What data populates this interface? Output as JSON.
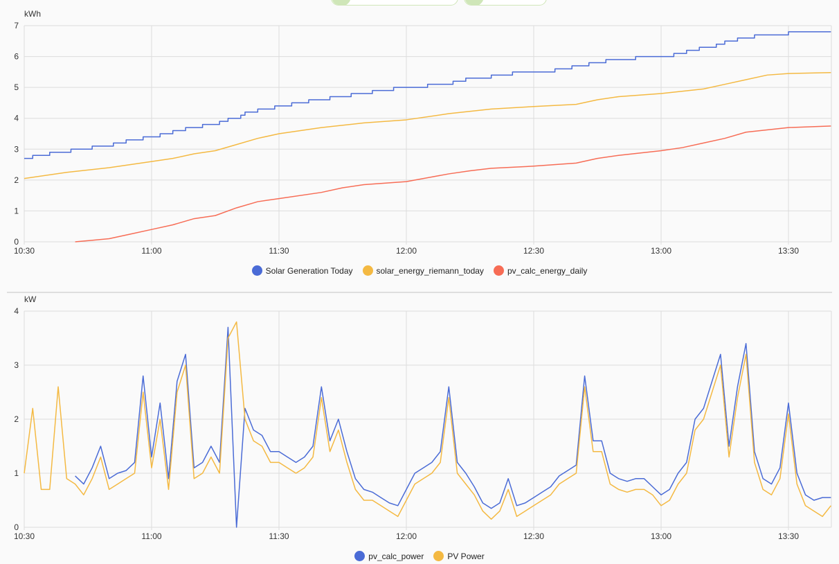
{
  "colors": {
    "blue": "#4a6bd6",
    "orange": "#f4b942",
    "red": "#f76c55",
    "grid": "#dcdcdc"
  },
  "chart_data": [
    {
      "type": "line",
      "unit_label": "kWh",
      "ylim": [
        0,
        7
      ],
      "yticks": [
        "0",
        "1",
        "2",
        "3",
        "4",
        "5",
        "6",
        "7"
      ],
      "xrange": [
        "10:30",
        "13:40"
      ],
      "xticks": [
        "10:30",
        "11:00",
        "11:30",
        "12:00",
        "12:30",
        "13:00",
        "13:30"
      ],
      "grid": true,
      "legend_position": "bottom-center",
      "series": [
        {
          "name": "Solar Generation Today",
          "color": "blue",
          "step": true,
          "points": [
            [
              "10:30",
              2.7
            ],
            [
              "10:32",
              2.8
            ],
            [
              "10:36",
              2.9
            ],
            [
              "10:41",
              3.0
            ],
            [
              "10:46",
              3.1
            ],
            [
              "10:51",
              3.2
            ],
            [
              "10:54",
              3.3
            ],
            [
              "10:58",
              3.4
            ],
            [
              "11:02",
              3.5
            ],
            [
              "11:05",
              3.6
            ],
            [
              "11:08",
              3.7
            ],
            [
              "11:12",
              3.8
            ],
            [
              "11:16",
              3.9
            ],
            [
              "11:18",
              4.0
            ],
            [
              "11:21",
              4.1
            ],
            [
              "11:22",
              4.2
            ],
            [
              "11:25",
              4.3
            ],
            [
              "11:29",
              4.4
            ],
            [
              "11:33",
              4.5
            ],
            [
              "11:37",
              4.6
            ],
            [
              "11:42",
              4.7
            ],
            [
              "11:47",
              4.8
            ],
            [
              "11:52",
              4.9
            ],
            [
              "11:57",
              5.0
            ],
            [
              "12:05",
              5.1
            ],
            [
              "12:11",
              5.2
            ],
            [
              "12:14",
              5.3
            ],
            [
              "12:20",
              5.4
            ],
            [
              "12:25",
              5.5
            ],
            [
              "12:35",
              5.6
            ],
            [
              "12:39",
              5.7
            ],
            [
              "12:43",
              5.8
            ],
            [
              "12:47",
              5.9
            ],
            [
              "12:54",
              6.0
            ],
            [
              "13:03",
              6.1
            ],
            [
              "13:06",
              6.2
            ],
            [
              "13:09",
              6.3
            ],
            [
              "13:13",
              6.4
            ],
            [
              "13:15",
              6.5
            ],
            [
              "13:18",
              6.6
            ],
            [
              "13:22",
              6.7
            ],
            [
              "13:30",
              6.8
            ],
            [
              "13:40",
              6.8
            ]
          ]
        },
        {
          "name": "solar_energy_riemann_today",
          "color": "orange",
          "step": false,
          "points": [
            [
              "10:30",
              2.05
            ],
            [
              "10:40",
              2.25
            ],
            [
              "10:50",
              2.4
            ],
            [
              "11:00",
              2.6
            ],
            [
              "11:05",
              2.7
            ],
            [
              "11:10",
              2.85
            ],
            [
              "11:15",
              2.95
            ],
            [
              "11:20",
              3.15
            ],
            [
              "11:25",
              3.35
            ],
            [
              "11:30",
              3.5
            ],
            [
              "11:40",
              3.7
            ],
            [
              "11:50",
              3.85
            ],
            [
              "12:00",
              3.95
            ],
            [
              "12:10",
              4.15
            ],
            [
              "12:20",
              4.3
            ],
            [
              "12:30",
              4.38
            ],
            [
              "12:40",
              4.45
            ],
            [
              "12:45",
              4.6
            ],
            [
              "12:50",
              4.7
            ],
            [
              "13:00",
              4.8
            ],
            [
              "13:10",
              4.95
            ],
            [
              "13:15",
              5.1
            ],
            [
              "13:20",
              5.25
            ],
            [
              "13:25",
              5.4
            ],
            [
              "13:30",
              5.45
            ],
            [
              "13:40",
              5.48
            ]
          ]
        },
        {
          "name": "pv_calc_energy_daily",
          "color": "red",
          "step": false,
          "points": [
            [
              "10:42",
              0.0
            ],
            [
              "10:50",
              0.1
            ],
            [
              "10:55",
              0.25
            ],
            [
              "11:00",
              0.4
            ],
            [
              "11:05",
              0.55
            ],
            [
              "11:10",
              0.75
            ],
            [
              "11:15",
              0.85
            ],
            [
              "11:20",
              1.1
            ],
            [
              "11:25",
              1.3
            ],
            [
              "11:30",
              1.4
            ],
            [
              "11:40",
              1.6
            ],
            [
              "11:45",
              1.75
            ],
            [
              "11:50",
              1.85
            ],
            [
              "12:00",
              1.95
            ],
            [
              "12:10",
              2.2
            ],
            [
              "12:15",
              2.3
            ],
            [
              "12:20",
              2.38
            ],
            [
              "12:30",
              2.45
            ],
            [
              "12:40",
              2.55
            ],
            [
              "12:45",
              2.7
            ],
            [
              "12:50",
              2.8
            ],
            [
              "13:00",
              2.95
            ],
            [
              "13:05",
              3.05
            ],
            [
              "13:10",
              3.2
            ],
            [
              "13:15",
              3.35
            ],
            [
              "13:20",
              3.55
            ],
            [
              "13:30",
              3.7
            ],
            [
              "13:40",
              3.75
            ]
          ]
        }
      ]
    },
    {
      "type": "line",
      "unit_label": "kW",
      "ylim": [
        0,
        4
      ],
      "yticks": [
        "0",
        "1",
        "2",
        "3",
        "4"
      ],
      "xrange": [
        "10:30",
        "13:40"
      ],
      "xticks": [
        "10:30",
        "11:00",
        "11:30",
        "12:00",
        "12:30",
        "13:00",
        "13:30"
      ],
      "grid": true,
      "legend_position": "bottom-center",
      "sample_start": "10:30",
      "sample_interval_min": 2,
      "series": [
        {
          "name": "pv_calc_power",
          "color": "blue",
          "values": [
            null,
            null,
            null,
            null,
            null,
            null,
            0.95,
            0.8,
            1.1,
            1.5,
            0.9,
            1.0,
            1.05,
            1.2,
            2.8,
            1.3,
            2.3,
            0.9,
            2.7,
            3.2,
            1.1,
            1.2,
            1.5,
            1.2,
            3.7,
            0,
            2.2,
            1.8,
            1.7,
            1.4,
            1.4,
            1.3,
            1.2,
            1.3,
            1.5,
            2.6,
            1.6,
            2.0,
            1.4,
            0.9,
            0.7,
            0.65,
            0.55,
            0.45,
            0.4,
            0.7,
            1.0,
            1.1,
            1.2,
            1.4,
            2.6,
            1.2,
            1.0,
            0.75,
            0.45,
            0.35,
            0.45,
            0.9,
            0.4,
            0.45,
            0.55,
            0.65,
            0.75,
            0.95,
            1.05,
            1.15,
            2.8,
            1.6,
            1.6,
            1.0,
            0.9,
            0.85,
            0.9,
            0.9,
            0.75,
            0.6,
            0.7,
            1.0,
            1.2,
            2.0,
            2.2,
            2.7,
            3.2,
            1.5,
            2.6,
            3.4,
            1.4,
            0.9,
            0.8,
            1.1,
            2.3,
            1.0,
            0.6,
            0.5,
            0.55,
            0.55
          ]
        },
        {
          "name": "PV Power",
          "color": "orange",
          "values": [
            1.0,
            2.2,
            0.7,
            0.7,
            2.6,
            0.9,
            0.8,
            0.6,
            0.9,
            1.3,
            0.7,
            0.8,
            0.9,
            1.0,
            2.5,
            1.1,
            2.0,
            0.7,
            2.5,
            3.0,
            0.9,
            1.0,
            1.3,
            1.0,
            3.5,
            3.8,
            2.0,
            1.6,
            1.5,
            1.2,
            1.2,
            1.1,
            1.0,
            1.1,
            1.3,
            2.4,
            1.4,
            1.8,
            1.2,
            0.7,
            0.5,
            0.5,
            0.4,
            0.3,
            0.2,
            0.5,
            0.8,
            0.9,
            1.0,
            1.2,
            2.4,
            1.0,
            0.8,
            0.6,
            0.3,
            0.15,
            0.3,
            0.7,
            0.2,
            0.3,
            0.4,
            0.5,
            0.6,
            0.8,
            0.9,
            1.0,
            2.6,
            1.4,
            1.4,
            0.8,
            0.7,
            0.65,
            0.7,
            0.7,
            0.6,
            0.4,
            0.5,
            0.8,
            1.0,
            1.8,
            2.0,
            2.5,
            3.0,
            1.3,
            2.4,
            3.2,
            1.2,
            0.7,
            0.6,
            0.9,
            2.1,
            0.8,
            0.4,
            0.3,
            0.2,
            0.4
          ]
        }
      ]
    }
  ]
}
